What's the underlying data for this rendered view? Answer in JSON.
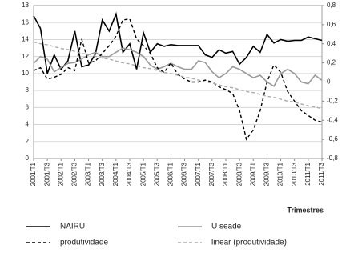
{
  "chart_data": {
    "type": "line",
    "xlabel": "Trimestres",
    "categories": [
      "2001/T1",
      null,
      "2001/T3",
      null,
      "2002/T1",
      null,
      "2002/T3",
      null,
      "2003/T1",
      null,
      "2003/T3",
      null,
      "2004/T1",
      null,
      "2004/T3",
      null,
      "2005/T1",
      null,
      "2005/T3",
      null,
      "2006/T1",
      null,
      "2006/T3",
      null,
      "2007/T1",
      null,
      "2007/T3",
      null,
      "2008/T1",
      null,
      "2008/T3",
      null,
      "2009/T1",
      null,
      "2009/T3",
      null,
      "2010/T1",
      null,
      "2010/T3",
      null,
      "2011/T1",
      null,
      "2011/T3"
    ],
    "series": [
      {
        "name": "NAIRU",
        "color": "#000000",
        "dashed": false,
        "values": [
          16.8,
          15.3,
          10.0,
          12.2,
          10.5,
          11.5,
          15.0,
          10.8,
          11.0,
          12.3,
          16.3,
          15.0,
          17.0,
          12.5,
          13.5,
          10.5,
          14.8,
          12.5,
          13.5,
          13.2,
          13.4,
          13.3,
          13.3,
          13.3,
          13.3,
          12.2,
          11.9,
          12.8,
          12.4,
          12.6,
          11.1,
          11.9,
          13.2,
          12.5,
          14.6,
          13.6,
          14.0,
          13.8,
          13.9,
          13.9,
          14.3,
          14.1,
          13.9
        ]
      },
      {
        "name": "U seade",
        "color": "#999999",
        "dashed": false,
        "values": [
          11.2,
          12.0,
          11.7,
          10.2,
          10.7,
          11.2,
          11.3,
          11.7,
          12.2,
          12.5,
          12.0,
          12.0,
          12.5,
          13.0,
          12.8,
          12.5,
          12.0,
          11.0,
          10.5,
          10.8,
          11.2,
          10.8,
          10.5,
          10.5,
          11.5,
          11.3,
          10.2,
          9.5,
          10.0,
          10.8,
          10.5,
          10.0,
          9.5,
          9.8,
          9.0,
          8.5,
          10.0,
          10.5,
          10.0,
          9.0,
          8.8,
          9.8,
          9.2
        ]
      },
      {
        "name": "produtividade",
        "color": "#000000",
        "dashed": true,
        "axis": "y2",
        "values": [
          0.12,
          0.15,
          0.03,
          0.05,
          0.08,
          0.15,
          0.12,
          0.45,
          0.2,
          0.22,
          0.3,
          0.38,
          0.48,
          0.65,
          0.66,
          0.45,
          0.38,
          0.3,
          0.15,
          0.1,
          0.2,
          0.08,
          0.03,
          0.0,
          0.0,
          0.02,
          0.0,
          -0.05,
          -0.08,
          -0.12,
          -0.3,
          -0.6,
          -0.5,
          -0.3,
          0.0,
          0.18,
          0.1,
          -0.1,
          -0.2,
          -0.3,
          -0.35,
          -0.4,
          -0.42
        ]
      },
      {
        "name": "linear (produtividade)",
        "color": "#aaaaaa",
        "dashed": true,
        "axis": "y2",
        "values": [
          0.42,
          0.4,
          0.39,
          0.37,
          0.35,
          0.34,
          0.32,
          0.3,
          0.29,
          0.27,
          0.25,
          0.24,
          0.22,
          0.2,
          0.19,
          0.17,
          0.15,
          0.14,
          0.12,
          0.1,
          0.09,
          0.07,
          0.05,
          0.04,
          0.02,
          0.0,
          -0.01,
          -0.03,
          -0.05,
          -0.06,
          -0.08,
          -0.1,
          -0.11,
          -0.13,
          -0.15,
          -0.16,
          -0.18,
          -0.2,
          -0.21,
          -0.23,
          -0.25,
          -0.26,
          -0.28
        ]
      }
    ],
    "ylim": [
      0,
      18
    ],
    "yticks": [
      0,
      2,
      4,
      6,
      8,
      10,
      12,
      14,
      16,
      18
    ],
    "y2lim": [
      -0.8,
      0.8
    ],
    "y2ticks": [
      {
        "value": -0.8,
        "label": "-0,8"
      },
      {
        "value": -0.6,
        "label": "-0,6"
      },
      {
        "value": -0.4,
        "label": "-0,4"
      },
      {
        "value": -0.2,
        "label": "-0,2"
      },
      0,
      {
        "value": 0.2,
        "label": "0,2"
      },
      {
        "value": 0.4,
        "label": "0,4"
      },
      {
        "value": 0.6,
        "label": "0,6"
      },
      {
        "value": 0.8,
        "label": "0,8"
      }
    ],
    "grid": true
  }
}
